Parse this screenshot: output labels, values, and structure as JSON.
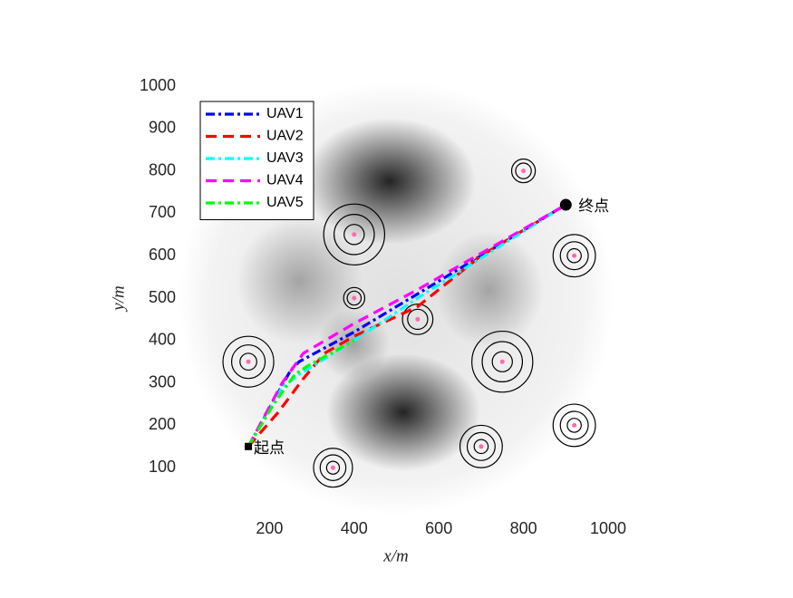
{
  "chart_data": {
    "type": "line",
    "xlabel": "x/m",
    "ylabel": "y/m",
    "xlim": [
      0,
      1000
    ],
    "ylim": [
      0,
      1000
    ],
    "xticks": [
      200,
      400,
      600,
      800,
      1000
    ],
    "yticks": [
      100,
      200,
      300,
      400,
      500,
      600,
      700,
      800,
      900,
      1000
    ],
    "series": [
      {
        "name": "UAV1",
        "color": "#0000ff",
        "dash": "dash-dot",
        "x": [
          150,
          250,
          270,
          400,
          550,
          900
        ],
        "values": [
          150,
          330,
          350,
          420,
          510,
          720
        ]
      },
      {
        "name": "UAV2",
        "color": "#ff0000",
        "dash": "dashed",
        "x": [
          150,
          220,
          250,
          280,
          330,
          400,
          550,
          700,
          900
        ],
        "values": [
          150,
          230,
          270,
          310,
          370,
          410,
          480,
          600,
          720
        ]
      },
      {
        "name": "UAV3",
        "color": "#00ffff",
        "dash": "dash-dot",
        "x": [
          150,
          230,
          270,
          400,
          550,
          900
        ],
        "values": [
          150,
          290,
          320,
          400,
          500,
          720
        ]
      },
      {
        "name": "UAV4",
        "color": "#ff00ff",
        "dash": "dashed",
        "x": [
          150,
          230,
          280,
          400,
          550,
          900
        ],
        "values": [
          150,
          300,
          370,
          440,
          520,
          720
        ]
      },
      {
        "name": "UAV5",
        "color": "#00ff00",
        "dash": "dash-dot",
        "x": [
          150,
          210,
          260,
          290,
          400
        ],
        "values": [
          150,
          250,
          320,
          340,
          400
        ]
      }
    ],
    "threats": [
      {
        "x": 400,
        "y": 650,
        "r": 72
      },
      {
        "x": 800,
        "y": 800,
        "r": 28
      },
      {
        "x": 920,
        "y": 600,
        "r": 50
      },
      {
        "x": 400,
        "y": 500,
        "r": 25
      },
      {
        "x": 550,
        "y": 450,
        "r": 36
      },
      {
        "x": 750,
        "y": 350,
        "r": 72
      },
      {
        "x": 150,
        "y": 350,
        "r": 60
      },
      {
        "x": 920,
        "y": 200,
        "r": 50
      },
      {
        "x": 700,
        "y": 150,
        "r": 50
      },
      {
        "x": 350,
        "y": 100,
        "r": 46
      }
    ],
    "start": {
      "label": "起点",
      "x": 150,
      "y": 150
    },
    "end": {
      "label": "终点",
      "x": 900,
      "y": 720
    },
    "legend": "upper left"
  }
}
